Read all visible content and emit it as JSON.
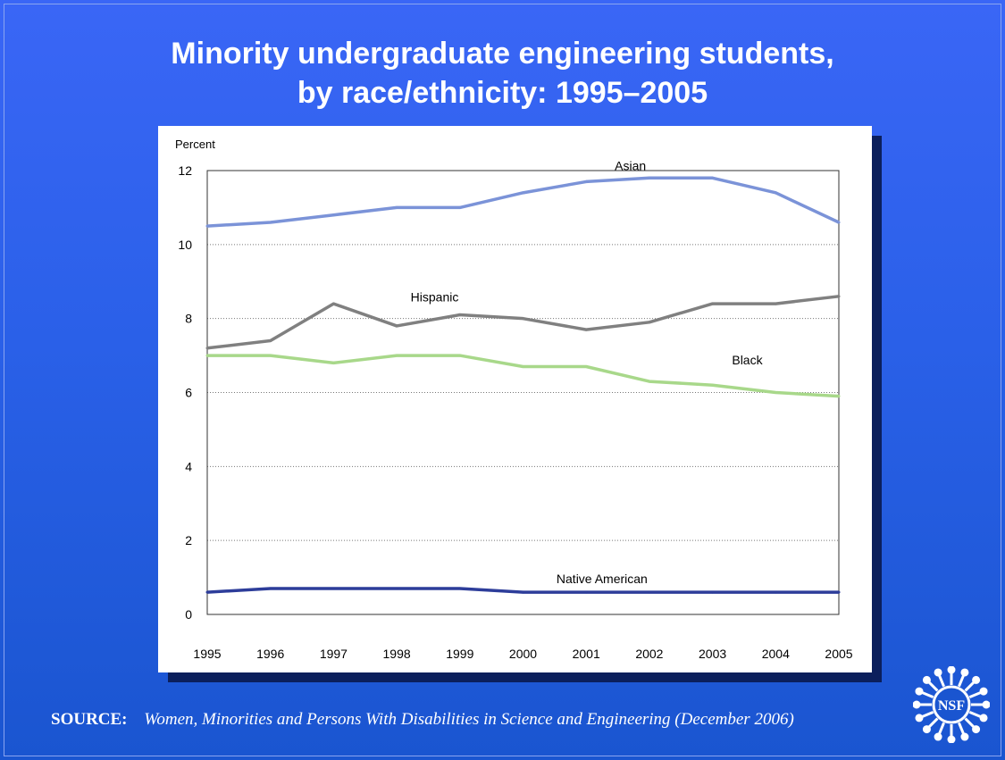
{
  "slide": {
    "title_line1": "Minority undergraduate engineering students,",
    "title_line2": "by race/ethnicity: 1995–2005",
    "source_label": "SOURCE:",
    "source_text": "Women, Minorities and Persons With Disabilities in Science and Engineering (December 2006)",
    "logo_text": "NSF",
    "background_color": "#2a60e8"
  },
  "chart_data": {
    "type": "line",
    "title": "",
    "ylabel": "Percent",
    "xlabel": "",
    "categories": [
      "1995",
      "1996",
      "1997",
      "1998",
      "1999",
      "2000",
      "2001",
      "2002",
      "2003",
      "2004",
      "2005"
    ],
    "ylim": [
      0,
      12
    ],
    "yticks": [
      0,
      2,
      4,
      6,
      8,
      10,
      12
    ],
    "grid": "horizontal dotted",
    "series": [
      {
        "name": "Asian",
        "color": "#7b93d8",
        "values": [
          10.5,
          10.6,
          10.8,
          11.0,
          11.0,
          11.4,
          11.7,
          11.8,
          11.8,
          11.4,
          10.6
        ]
      },
      {
        "name": "Hispanic",
        "color": "#808080",
        "values": [
          7.2,
          7.4,
          8.4,
          7.8,
          8.1,
          8.0,
          7.7,
          7.9,
          8.4,
          8.4,
          8.6
        ]
      },
      {
        "name": "Black",
        "color": "#a8d88a",
        "values": [
          7.0,
          7.0,
          6.8,
          7.0,
          7.0,
          6.7,
          6.7,
          6.3,
          6.2,
          6.0,
          5.9
        ]
      },
      {
        "name": "Native American",
        "color": "#2d3d9a",
        "values": [
          0.6,
          0.7,
          0.7,
          0.7,
          0.7,
          0.6,
          0.6,
          0.6,
          0.6,
          0.6,
          0.6
        ]
      }
    ]
  }
}
